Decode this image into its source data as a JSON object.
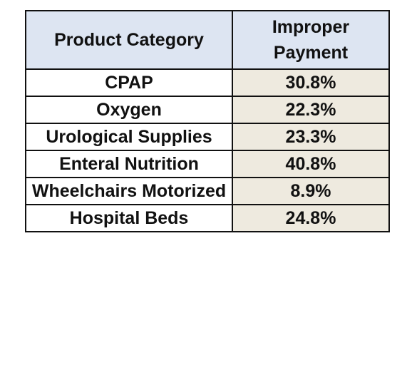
{
  "chart_data": {
    "type": "table",
    "columns": [
      "Product Category",
      "Improper Payment"
    ],
    "rows": [
      {
        "category": "CPAP",
        "value": "30.8%"
      },
      {
        "category": "Oxygen",
        "value": "22.3%"
      },
      {
        "category": "Urological Supplies",
        "value": "23.3%"
      },
      {
        "category": "Enteral Nutrition",
        "value": "40.8%"
      },
      {
        "category": "Wheelchairs Motorized",
        "value": "8.9%"
      },
      {
        "category": "Hospital Beds",
        "value": "24.8%"
      }
    ],
    "values": [
      30.8,
      22.3,
      23.3,
      40.8,
      8.9,
      24.8
    ],
    "colors": {
      "header_bg": "#dde5f2",
      "value_bg": "#eeeadf",
      "border": "#111111"
    }
  }
}
